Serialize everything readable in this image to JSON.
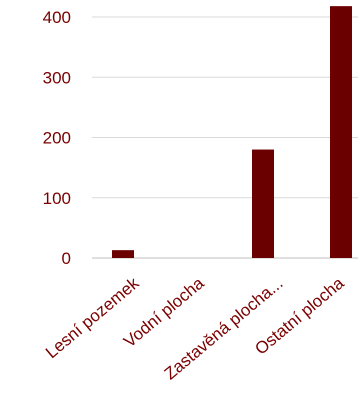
{
  "chart_data": {
    "type": "bar",
    "title": "",
    "xlabel": "",
    "ylabel": "",
    "categories": [
      "Lesní pozemek",
      "Vodní plocha",
      "Zastavěná plocha...",
      "Ostatní plocha"
    ],
    "values": [
      13,
      0,
      180,
      418
    ],
    "ylim": [
      0,
      400
    ],
    "yticks": [
      0,
      100,
      200,
      300,
      400
    ],
    "ytick_labels": [
      "0",
      "100",
      "200",
      "300",
      "400"
    ],
    "grid": true,
    "colors": {
      "bar": "#6b0000",
      "axis_text": "#7a0000",
      "grid": "#d9d9d9",
      "axis_line": "#bfbfbf"
    }
  }
}
